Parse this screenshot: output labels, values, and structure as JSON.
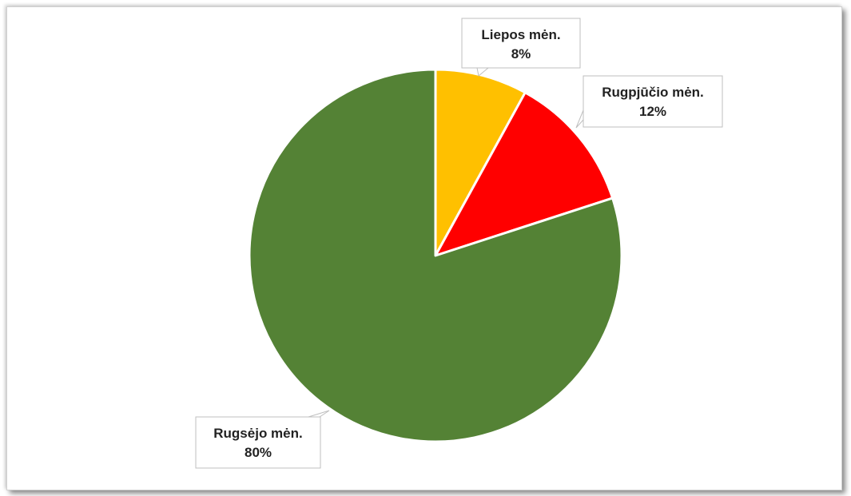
{
  "chart_data": {
    "type": "pie",
    "title": "",
    "slices": [
      {
        "name": "Liepos mėn.",
        "value": 8,
        "label_value": "8%",
        "color": "#FFC000"
      },
      {
        "name": "Rugpjūčio mėn.",
        "value": 12,
        "label_value": "12%",
        "color": "#FF0000"
      },
      {
        "name": "Rugsėjo mėn.",
        "value": 80,
        "label_value": "80%",
        "color": "#548235"
      }
    ],
    "start_angle_deg": 0,
    "direction": "clockwise",
    "legend": "none",
    "data_labels": "callouts"
  }
}
